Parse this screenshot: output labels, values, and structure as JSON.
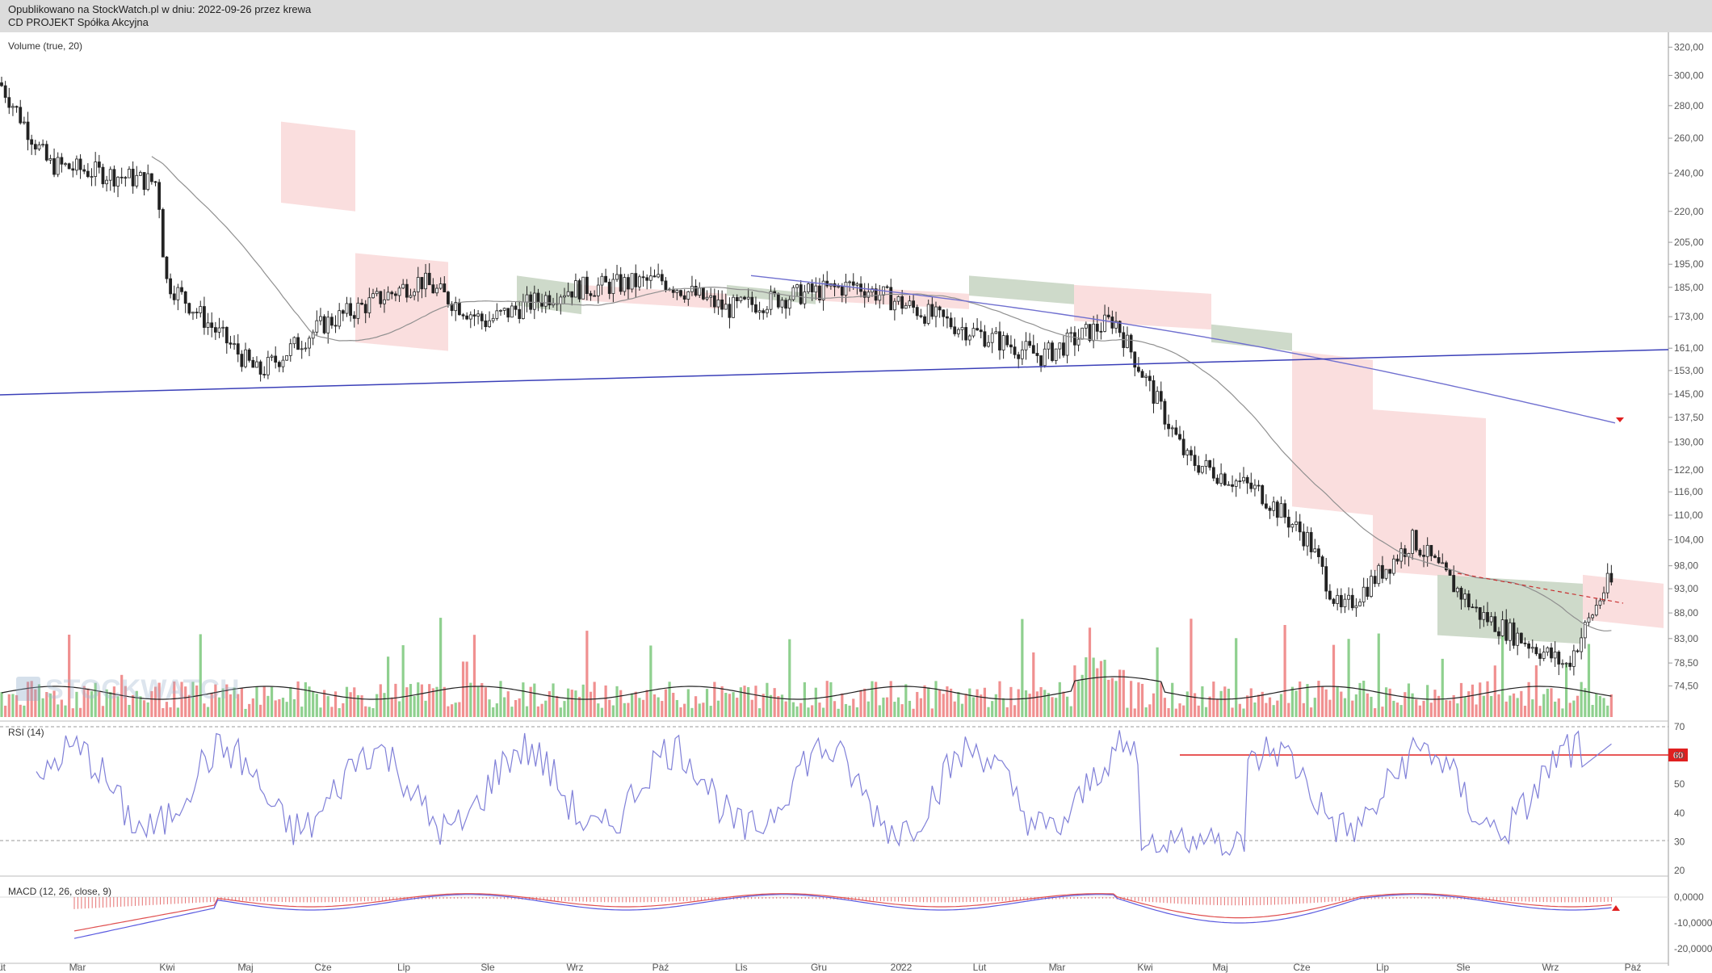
{
  "header": {
    "published": "Opublikowano na StockWatch.pl w dniu: 2022-09-26 przez krewa",
    "instrument": "CD PROJEKT Spółka Akcyjna"
  },
  "watermark": "STOCKWATCH",
  "colors": {
    "up": "#3a3a3a",
    "vol_up": "#8fd08f",
    "vol_down": "#f09090",
    "cloud_bear": "#fadada",
    "cloud_bull": "#c9d6c4",
    "trend_blue": "#3a3fb8",
    "ma_long": "#7070d0",
    "ma_short": "#909090",
    "rsi": "#8080d8",
    "macd": "#5a5ae0",
    "signal": "#e05050",
    "level_red": "#e02020"
  },
  "panels": {
    "main_label": "Volume (true, 20)",
    "rsi_label": "RSI (14)",
    "macd_label": "MACD (12, 26, close, 9)"
  },
  "price_axis": [
    "320,00",
    "300,00",
    "280,00",
    "260,00",
    "240,00",
    "220,00",
    "205,00",
    "195,00",
    "185,00",
    "173,00",
    "161,00",
    "153,00",
    "145,00",
    "137,50",
    "130,00",
    "122,00",
    "116,00",
    "110,00",
    "104,00",
    "98,00",
    "93,00",
    "88,00",
    "83,00",
    "78,50",
    "74,50"
  ],
  "rsi_axis": [
    "70",
    "60",
    "50",
    "40",
    "30",
    "20"
  ],
  "rsi_level_badge": "60",
  "macd_axis": [
    "0,0000",
    "-10,0000",
    "-20,0000"
  ],
  "x_axis": [
    "ut",
    "Mar",
    "Kwi",
    "Maj",
    "Cze",
    "Lip",
    "Sie",
    "Wrz",
    "Paź",
    "Lis",
    "Gru",
    "2022",
    "Lut",
    "Mar",
    "Kwi",
    "Maj",
    "Cze",
    "Lip",
    "Sie",
    "Wrz",
    "Paź"
  ],
  "chart_data": {
    "type": "candlestick",
    "price_ylim": [
      72,
      322
    ],
    "price_scale": "log",
    "series": [
      {
        "name": "Volume (true, 20)",
        "type": "bar"
      },
      {
        "name": "RSI (14)",
        "type": "line",
        "levels": [
          30,
          60,
          70
        ]
      },
      {
        "name": "MACD (12, 26, close, 9)",
        "type": "line"
      }
    ],
    "close_approx": [
      {
        "x": "ut",
        "y": 295
      },
      {
        "x": "Mar",
        "y": 245
      },
      {
        "x": "Kwi",
        "y": 235
      },
      {
        "x": "Kwi",
        "y": 188
      },
      {
        "x": "Maj",
        "y": 152
      },
      {
        "x": "Cze",
        "y": 170
      },
      {
        "x": "Lip",
        "y": 188
      },
      {
        "x": "Sie",
        "y": 171
      },
      {
        "x": "Wrz",
        "y": 184
      },
      {
        "x": "Paź",
        "y": 188
      },
      {
        "x": "Lis",
        "y": 176
      },
      {
        "x": "Gru",
        "y": 182
      },
      {
        "x": "2022",
        "y": 186
      },
      {
        "x": "Lut",
        "y": 170
      },
      {
        "x": "Mar",
        "y": 158
      },
      {
        "x": "Kwi",
        "y": 172
      },
      {
        "x": "Kwi",
        "y": 125
      },
      {
        "x": "Maj",
        "y": 116
      },
      {
        "x": "Cze",
        "y": 104
      },
      {
        "x": "Cze",
        "y": 88
      },
      {
        "x": "Lip",
        "y": 104
      },
      {
        "x": "Sie",
        "y": 88
      },
      {
        "x": "Wrz",
        "y": 78
      },
      {
        "x": "Wrz",
        "y": 94
      }
    ]
  }
}
